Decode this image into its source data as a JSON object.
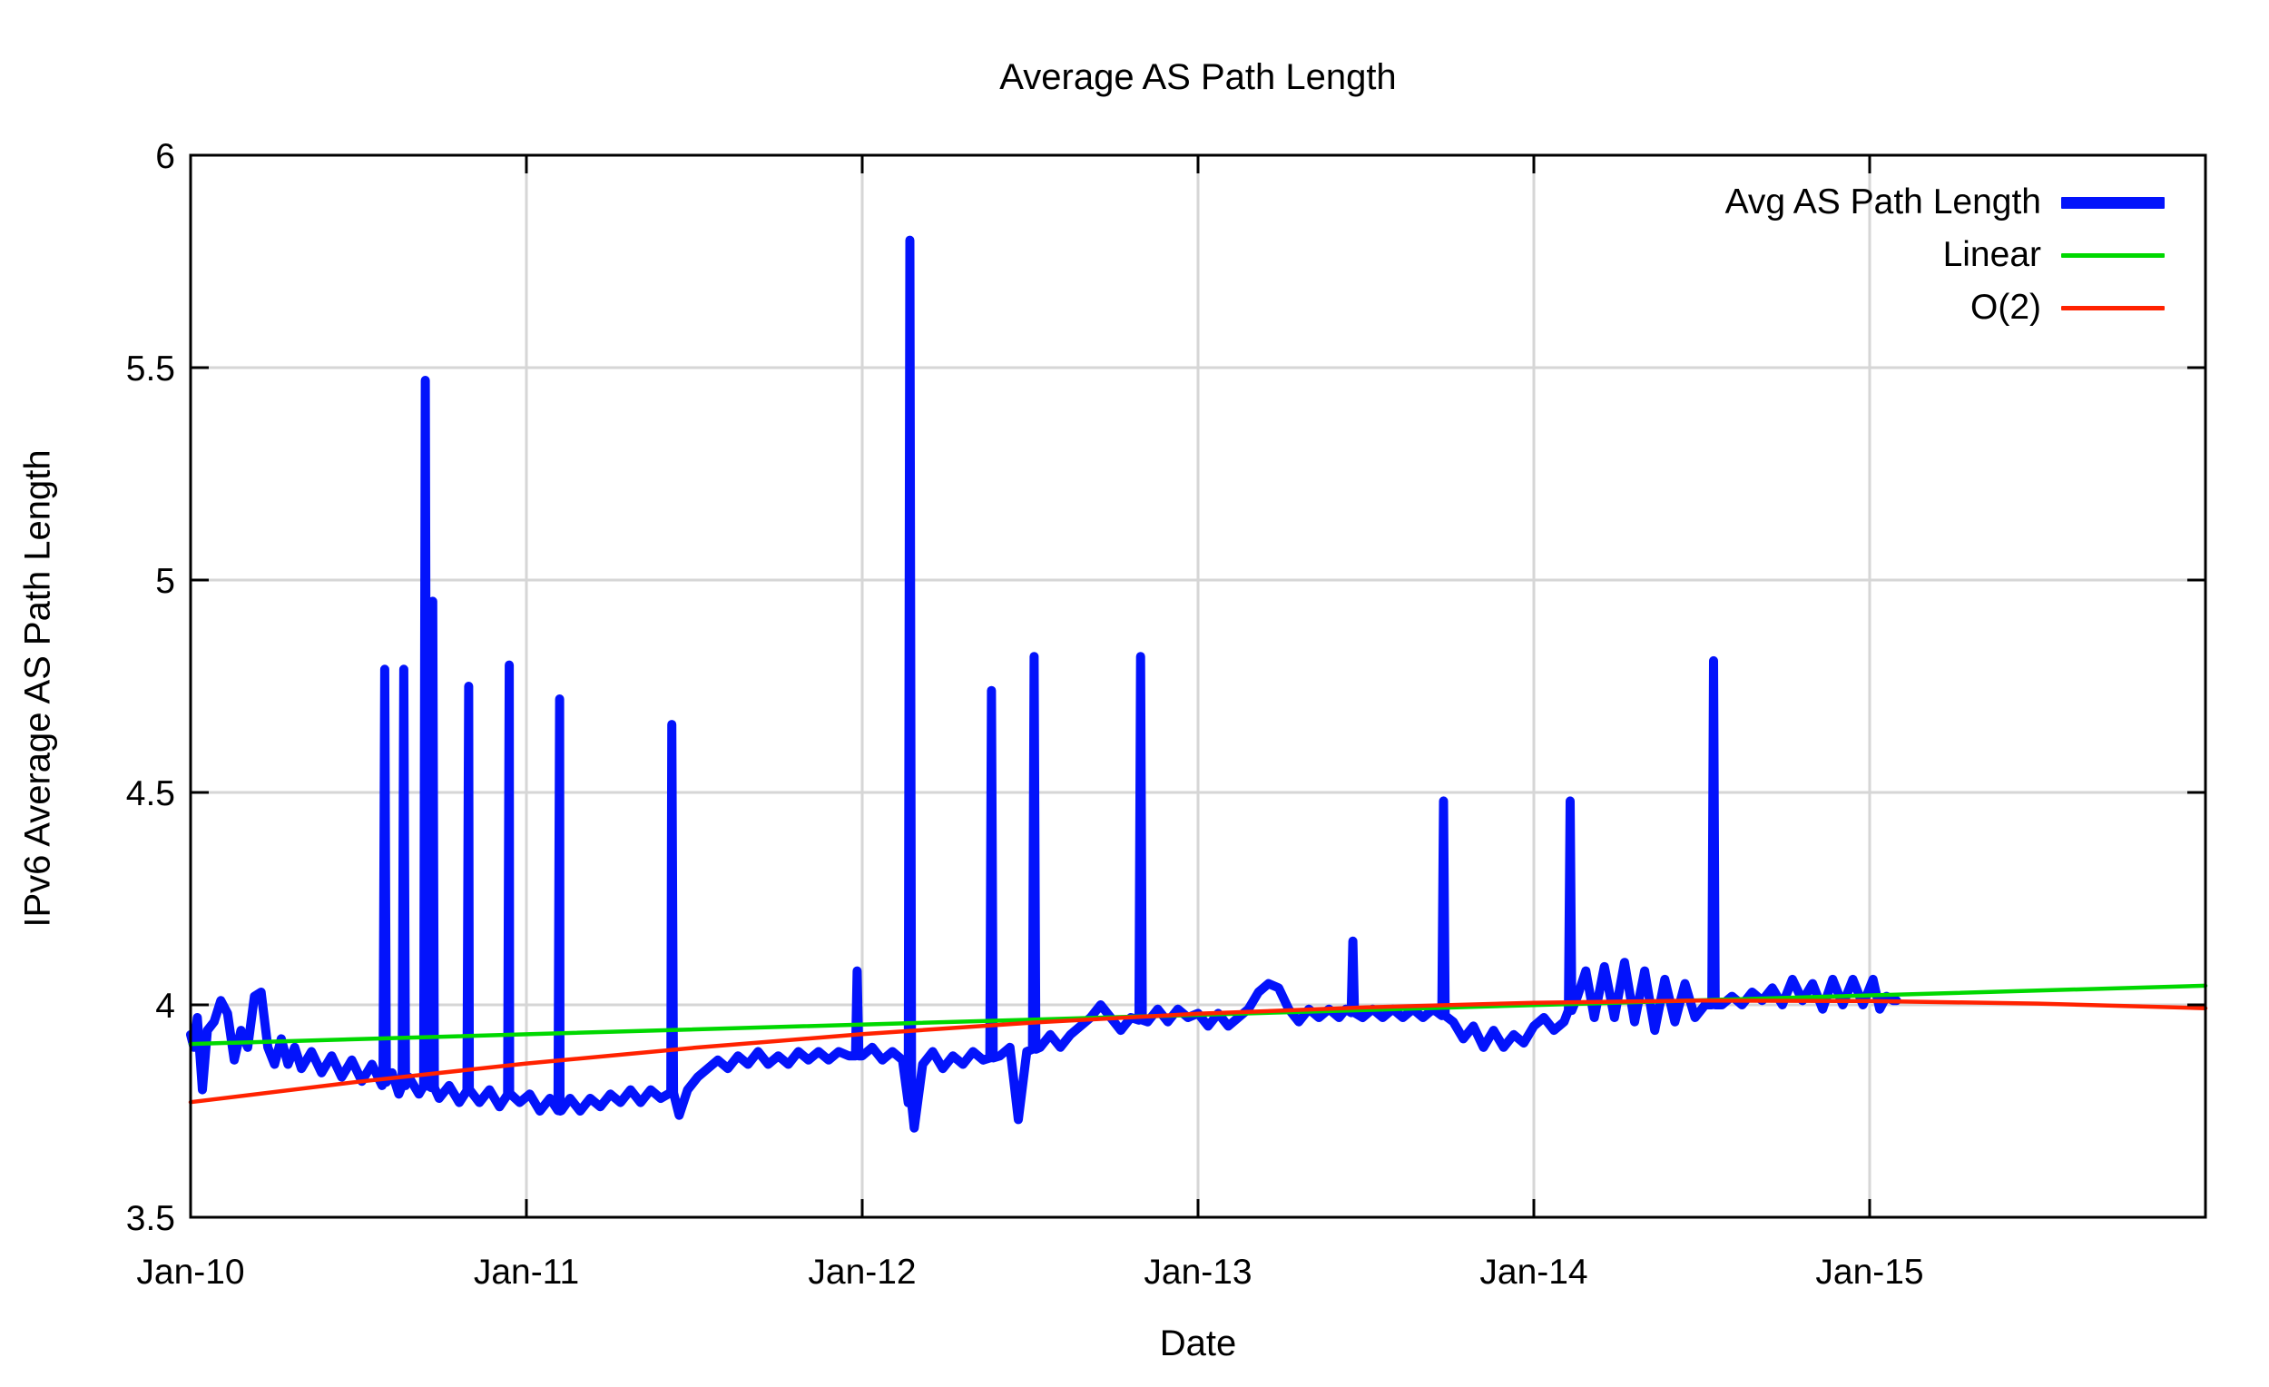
{
  "title": "Average AS Path Length",
  "x_axis": {
    "label": "Date",
    "tick_labels": [
      "Jan-10",
      "Jan-11",
      "Jan-12",
      "Jan-13",
      "Jan-14",
      "Jan-15"
    ]
  },
  "y_axis": {
    "label": "IPv6 Average AS Path Length",
    "tick_labels": [
      "3.5",
      "4",
      "4.5",
      "5",
      "5.5",
      "6"
    ]
  },
  "legend": {
    "entries": [
      {
        "label": "Avg AS Path Length",
        "series": "avg",
        "swatch_thickness": 13
      },
      {
        "label": "Linear",
        "series": "linear",
        "swatch_thickness": 5
      },
      {
        "label": "O(2)",
        "series": "o2",
        "swatch_thickness": 5
      }
    ]
  },
  "colors": {
    "avg": "#0313fb",
    "linear": "#00d800",
    "o2": "#ff2200",
    "grid": "#d6d6d6",
    "border": "#000000",
    "background": "#ffffff",
    "text": "#000000"
  },
  "chart_data": {
    "type": "line",
    "title": "Average AS Path Length",
    "xlabel": "Date",
    "ylabel": "IPv6 Average AS Path Length",
    "xlim_years": [
      2010,
      2016
    ],
    "ylim": [
      3.5,
      6
    ],
    "x_ticks": [
      {
        "year": 2010,
        "label": "Jan-10"
      },
      {
        "year": 2011,
        "label": "Jan-11"
      },
      {
        "year": 2012,
        "label": "Jan-12"
      },
      {
        "year": 2013,
        "label": "Jan-13"
      },
      {
        "year": 2014,
        "label": "Jan-14"
      },
      {
        "year": 2015,
        "label": "Jan-15"
      }
    ],
    "y_ticks": [
      3.5,
      4,
      4.5,
      5,
      5.5,
      6
    ],
    "grid": true,
    "legend_position": "top-right-inside",
    "series": [
      {
        "name": "Avg AS Path Length",
        "key": "avg",
        "style": "noisy-line",
        "width": 10,
        "spike_halfwidth_years": 0.005,
        "baseline": [
          [
            2010.0,
            3.93
          ],
          [
            2010.01,
            3.9
          ],
          [
            2010.02,
            3.97
          ],
          [
            2010.035,
            3.8
          ],
          [
            2010.05,
            3.94
          ],
          [
            2010.07,
            3.96
          ],
          [
            2010.09,
            4.01
          ],
          [
            2010.11,
            3.98
          ],
          [
            2010.13,
            3.87
          ],
          [
            2010.15,
            3.94
          ],
          [
            2010.17,
            3.9
          ],
          [
            2010.19,
            4.02
          ],
          [
            2010.21,
            4.03
          ],
          [
            2010.23,
            3.9
          ],
          [
            2010.25,
            3.86
          ],
          [
            2010.27,
            3.92
          ],
          [
            2010.29,
            3.86
          ],
          [
            2010.31,
            3.9
          ],
          [
            2010.33,
            3.85
          ],
          [
            2010.36,
            3.89
          ],
          [
            2010.39,
            3.84
          ],
          [
            2010.42,
            3.88
          ],
          [
            2010.45,
            3.83
          ],
          [
            2010.48,
            3.87
          ],
          [
            2010.51,
            3.82
          ],
          [
            2010.54,
            3.86
          ],
          [
            2010.57,
            3.81
          ],
          [
            2010.6,
            3.84
          ],
          [
            2010.62,
            3.79
          ],
          [
            2010.65,
            3.83
          ],
          [
            2010.68,
            3.79
          ],
          [
            2010.71,
            3.82
          ],
          [
            2010.74,
            3.78
          ],
          [
            2010.77,
            3.81
          ],
          [
            2010.8,
            3.77
          ],
          [
            2010.83,
            3.8
          ],
          [
            2010.86,
            3.77
          ],
          [
            2010.89,
            3.8
          ],
          [
            2010.92,
            3.76
          ],
          [
            2010.95,
            3.79
          ],
          [
            2010.98,
            3.77
          ],
          [
            2011.01,
            3.79
          ],
          [
            2011.04,
            3.75
          ],
          [
            2011.07,
            3.78
          ],
          [
            2011.1,
            3.75
          ],
          [
            2011.13,
            3.78
          ],
          [
            2011.16,
            3.75
          ],
          [
            2011.19,
            3.78
          ],
          [
            2011.22,
            3.76
          ],
          [
            2011.25,
            3.79
          ],
          [
            2011.28,
            3.77
          ],
          [
            2011.31,
            3.8
          ],
          [
            2011.34,
            3.77
          ],
          [
            2011.37,
            3.8
          ],
          [
            2011.4,
            3.78
          ],
          [
            2011.43,
            3.8
          ],
          [
            2011.455,
            3.74
          ],
          [
            2011.48,
            3.8
          ],
          [
            2011.51,
            3.83
          ],
          [
            2011.54,
            3.85
          ],
          [
            2011.57,
            3.87
          ],
          [
            2011.6,
            3.85
          ],
          [
            2011.63,
            3.88
          ],
          [
            2011.66,
            3.86
          ],
          [
            2011.69,
            3.89
          ],
          [
            2011.72,
            3.86
          ],
          [
            2011.75,
            3.88
          ],
          [
            2011.78,
            3.86
          ],
          [
            2011.81,
            3.89
          ],
          [
            2011.84,
            3.87
          ],
          [
            2011.87,
            3.89
          ],
          [
            2011.9,
            3.87
          ],
          [
            2011.93,
            3.89
          ],
          [
            2011.96,
            3.88
          ],
          [
            2012.0,
            3.88
          ],
          [
            2012.03,
            3.9
          ],
          [
            2012.06,
            3.87
          ],
          [
            2012.09,
            3.89
          ],
          [
            2012.12,
            3.87
          ],
          [
            2012.155,
            3.71
          ],
          [
            2012.18,
            3.86
          ],
          [
            2012.21,
            3.89
          ],
          [
            2012.24,
            3.85
          ],
          [
            2012.27,
            3.88
          ],
          [
            2012.3,
            3.86
          ],
          [
            2012.33,
            3.89
          ],
          [
            2012.36,
            3.87
          ],
          [
            2012.41,
            3.88
          ],
          [
            2012.44,
            3.9
          ],
          [
            2012.465,
            3.73
          ],
          [
            2012.49,
            3.89
          ],
          [
            2012.53,
            3.9
          ],
          [
            2012.56,
            3.93
          ],
          [
            2012.59,
            3.9
          ],
          [
            2012.62,
            3.93
          ],
          [
            2012.65,
            3.95
          ],
          [
            2012.68,
            3.97
          ],
          [
            2012.71,
            4.0
          ],
          [
            2012.74,
            3.97
          ],
          [
            2012.77,
            3.94
          ],
          [
            2012.8,
            3.97
          ],
          [
            2012.85,
            3.96
          ],
          [
            2012.88,
            3.99
          ],
          [
            2012.91,
            3.96
          ],
          [
            2012.94,
            3.99
          ],
          [
            2012.97,
            3.97
          ],
          [
            2013.0,
            3.98
          ],
          [
            2013.03,
            3.95
          ],
          [
            2013.06,
            3.98
          ],
          [
            2013.09,
            3.95
          ],
          [
            2013.12,
            3.97
          ],
          [
            2013.15,
            3.99
          ],
          [
            2013.18,
            4.03
          ],
          [
            2013.21,
            4.05
          ],
          [
            2013.24,
            4.04
          ],
          [
            2013.27,
            3.99
          ],
          [
            2013.3,
            3.96
          ],
          [
            2013.33,
            3.99
          ],
          [
            2013.36,
            3.97
          ],
          [
            2013.39,
            3.99
          ],
          [
            2013.42,
            3.97
          ],
          [
            2013.44,
            3.99
          ],
          [
            2013.49,
            3.97
          ],
          [
            2013.52,
            3.99
          ],
          [
            2013.55,
            3.97
          ],
          [
            2013.58,
            3.99
          ],
          [
            2013.61,
            3.97
          ],
          [
            2013.64,
            3.99
          ],
          [
            2013.67,
            3.97
          ],
          [
            2013.7,
            3.99
          ],
          [
            2013.76,
            3.96
          ],
          [
            2013.79,
            3.92
          ],
          [
            2013.82,
            3.95
          ],
          [
            2013.85,
            3.9
          ],
          [
            2013.88,
            3.94
          ],
          [
            2013.91,
            3.9
          ],
          [
            2013.94,
            3.93
          ],
          [
            2013.97,
            3.91
          ],
          [
            2014.0,
            3.95
          ],
          [
            2014.03,
            3.97
          ],
          [
            2014.06,
            3.94
          ],
          [
            2014.09,
            3.96
          ],
          [
            2014.13,
            4.02
          ],
          [
            2014.155,
            4.08
          ],
          [
            2014.18,
            3.97
          ],
          [
            2014.21,
            4.09
          ],
          [
            2014.24,
            3.97
          ],
          [
            2014.27,
            4.1
          ],
          [
            2014.3,
            3.96
          ],
          [
            2014.33,
            4.08
          ],
          [
            2014.36,
            3.94
          ],
          [
            2014.39,
            4.06
          ],
          [
            2014.42,
            3.96
          ],
          [
            2014.45,
            4.05
          ],
          [
            2014.48,
            3.97
          ],
          [
            2014.51,
            4.0
          ],
          [
            2014.56,
            4.0
          ],
          [
            2014.59,
            4.02
          ],
          [
            2014.62,
            4.0
          ],
          [
            2014.65,
            4.03
          ],
          [
            2014.68,
            4.01
          ],
          [
            2014.71,
            4.04
          ],
          [
            2014.74,
            4.0
          ],
          [
            2014.77,
            4.06
          ],
          [
            2014.8,
            4.01
          ],
          [
            2014.83,
            4.05
          ],
          [
            2014.86,
            3.99
          ],
          [
            2014.89,
            4.06
          ],
          [
            2014.92,
            4.0
          ],
          [
            2014.95,
            4.06
          ],
          [
            2014.98,
            4.0
          ],
          [
            2015.01,
            4.06
          ],
          [
            2015.03,
            3.99
          ],
          [
            2015.05,
            4.02
          ],
          [
            2015.07,
            4.01
          ],
          [
            2015.08,
            4.01
          ]
        ],
        "spikes": [
          [
            2010.578,
            4.79
          ],
          [
            2010.635,
            4.79
          ],
          [
            2010.699,
            5.47
          ],
          [
            2010.721,
            4.95
          ],
          [
            2010.828,
            4.75
          ],
          [
            2010.949,
            4.8
          ],
          [
            2011.099,
            4.72
          ],
          [
            2011.433,
            4.66
          ],
          [
            2011.985,
            4.08
          ],
          [
            2012.142,
            5.8
          ],
          [
            2012.385,
            4.74
          ],
          [
            2012.512,
            4.82
          ],
          [
            2012.829,
            4.82
          ],
          [
            2013.461,
            4.15
          ],
          [
            2013.731,
            4.48
          ],
          [
            2014.108,
            4.48
          ],
          [
            2014.535,
            4.81
          ]
        ]
      },
      {
        "name": "Linear",
        "key": "linear",
        "style": "line",
        "width": 4.5,
        "points": [
          [
            2010.0,
            3.908
          ],
          [
            2016.0,
            4.045
          ]
        ]
      },
      {
        "name": "O(2)",
        "key": "o2",
        "style": "line",
        "width": 4.5,
        "points": [
          [
            2010.0,
            3.771
          ],
          [
            2010.5,
            3.819
          ],
          [
            2011.0,
            3.862
          ],
          [
            2011.5,
            3.899
          ],
          [
            2012.0,
            3.931
          ],
          [
            2012.5,
            3.958
          ],
          [
            2013.0,
            3.979
          ],
          [
            2013.5,
            3.994
          ],
          [
            2014.0,
            4.005
          ],
          [
            2014.5,
            4.01
          ],
          [
            2015.0,
            4.009
          ],
          [
            2015.5,
            4.003
          ],
          [
            2016.0,
            3.992
          ]
        ]
      }
    ]
  }
}
